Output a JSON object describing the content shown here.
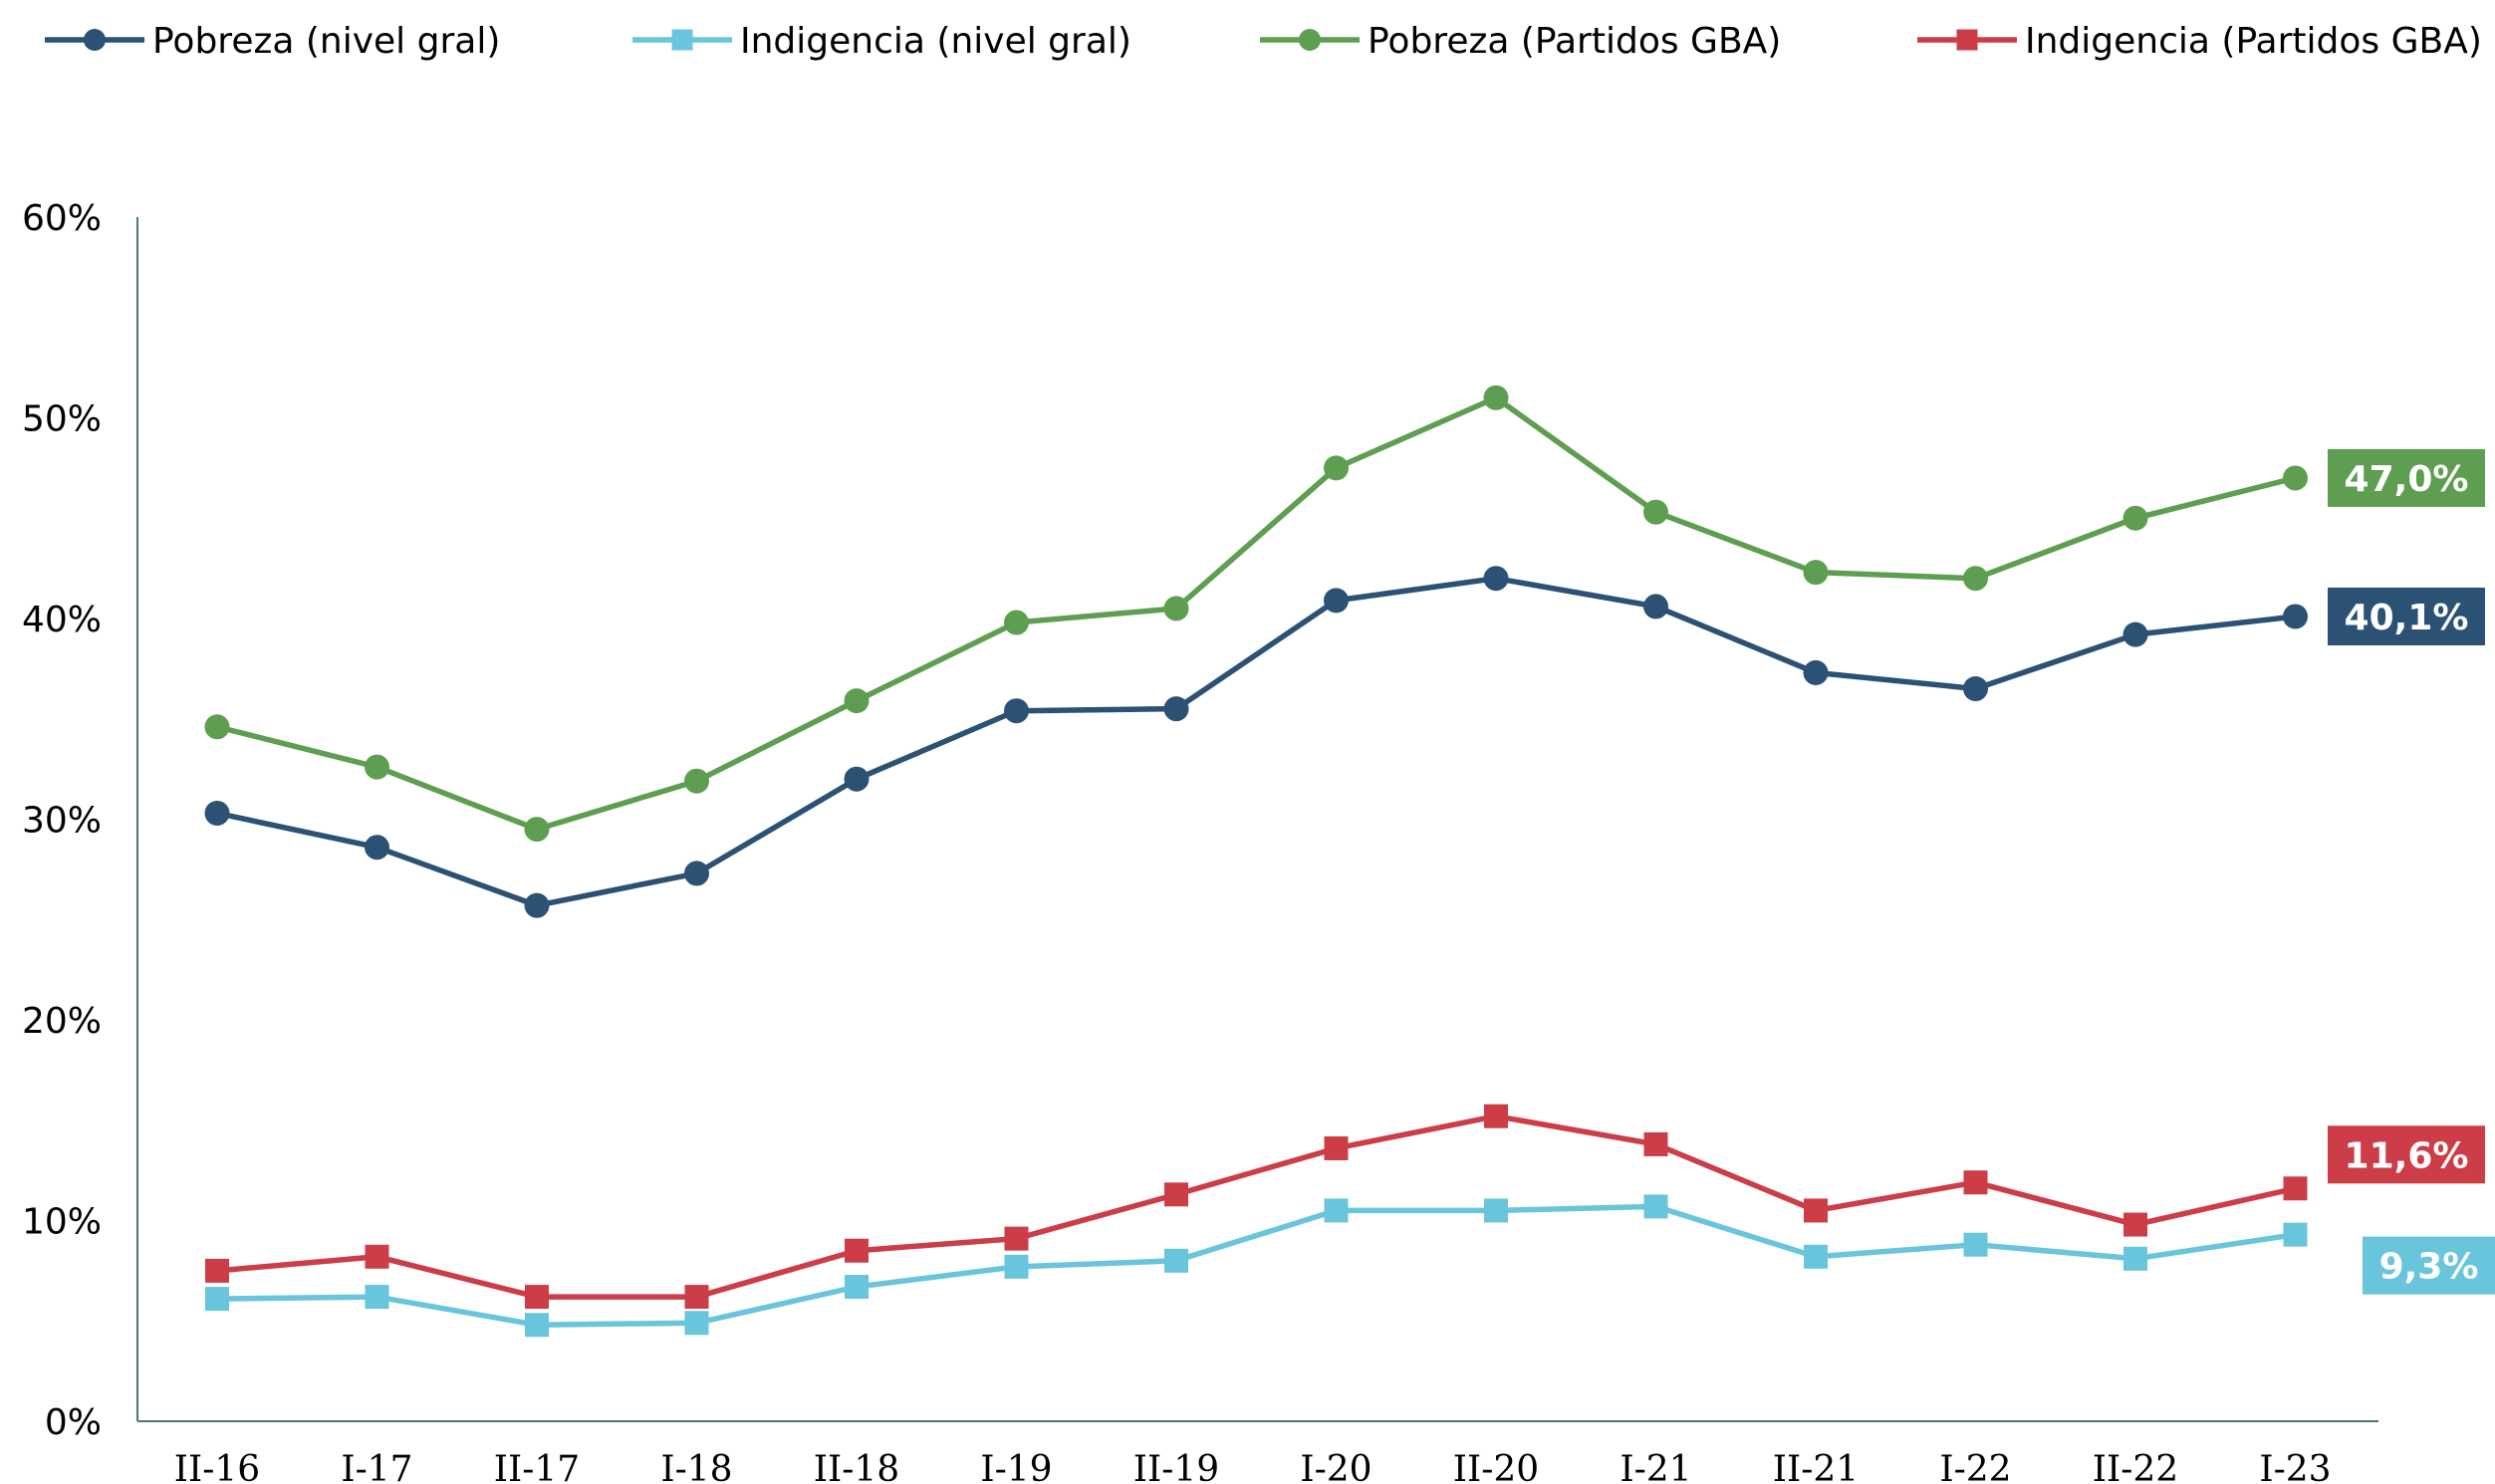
{
  "chart_data": {
    "type": "line",
    "categories": [
      "II-16",
      "I-17",
      "II-17",
      "I-18",
      "II-18",
      "I-19",
      "II-19",
      "I-20",
      "II-20",
      "I-21",
      "II-21",
      "I-22",
      "II-22",
      "I-23"
    ],
    "ylim": [
      0,
      60
    ],
    "yticks": [
      "0%",
      "10%",
      "20%",
      "30%",
      "40%",
      "50%",
      "60%"
    ],
    "ytick_values": [
      0,
      10,
      20,
      30,
      40,
      50,
      60
    ],
    "grid": false,
    "legend_position": "top",
    "series": [
      {
        "name": "Pobreza (nivel gral)",
        "color": "#2B5175",
        "marker": "circle",
        "values": [
          30.3,
          28.6,
          25.7,
          27.3,
          32.0,
          35.4,
          35.5,
          40.9,
          42.0,
          40.6,
          37.3,
          36.5,
          39.2,
          40.1
        ],
        "end_label": "40,1%"
      },
      {
        "name": "Indigencia (nivel gral)",
        "color": "#68C5DB",
        "marker": "square",
        "values": [
          6.1,
          6.2,
          4.8,
          4.9,
          6.7,
          7.7,
          8.0,
          10.5,
          10.5,
          10.7,
          8.2,
          8.8,
          8.1,
          9.3
        ],
        "end_label": "9,3%"
      },
      {
        "name": "Pobreza (Partidos GBA)",
        "color": "#5E9E50",
        "marker": "circle",
        "values": [
          34.6,
          32.6,
          29.5,
          31.9,
          35.9,
          39.8,
          40.5,
          47.5,
          51.0,
          45.3,
          42.3,
          42.0,
          45.0,
          47.0
        ],
        "end_label": "47,0%"
      },
      {
        "name": "Indigencia (Partidos GBA)",
        "color": "#CC3D48",
        "marker": "square",
        "values": [
          7.5,
          8.2,
          6.2,
          6.2,
          8.5,
          9.1,
          11.3,
          13.6,
          15.2,
          13.8,
          10.5,
          11.9,
          9.8,
          11.6
        ],
        "end_label": "11,6%"
      }
    ]
  }
}
